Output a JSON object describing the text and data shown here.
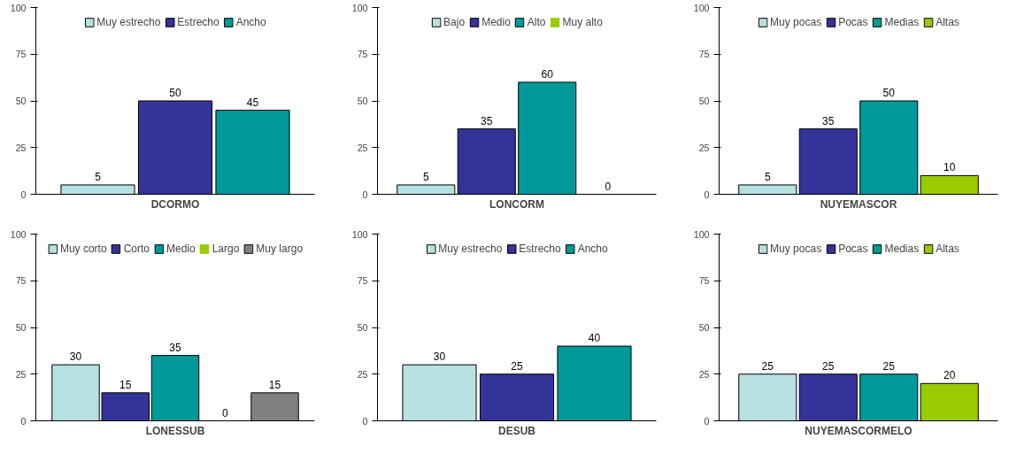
{
  "chart_data": [
    {
      "type": "bar",
      "categories": [
        null,
        null,
        null
      ],
      "xlabel": "DCORMO",
      "ylim": [
        0,
        100
      ],
      "yticks": [
        0,
        25,
        50,
        75,
        100
      ],
      "data_labels": true,
      "legend": "top",
      "grid": false,
      "series": [
        {
          "name": "Muy estrecho",
          "color": "#b7e0e3",
          "values": [
            5,
            null,
            null
          ]
        },
        {
          "name": "Estrecho",
          "color": "#333399",
          "values": [
            null,
            50,
            null
          ]
        },
        {
          "name": "Ancho",
          "color": "#009999",
          "values": [
            null,
            null,
            45
          ]
        }
      ]
    },
    {
      "type": "bar",
      "categories": [
        null,
        null,
        null,
        null
      ],
      "xlabel": "LONCORM",
      "ylim": [
        0,
        100
      ],
      "yticks": [
        0,
        25,
        50,
        75,
        100
      ],
      "data_labels": true,
      "legend": "top",
      "grid": false,
      "series": [
        {
          "name": "Bajo",
          "color": "#b7e0e3",
          "values": [
            5,
            null,
            null,
            null
          ]
        },
        {
          "name": "Medio",
          "color": "#333399",
          "values": [
            null,
            35,
            null,
            null
          ]
        },
        {
          "name": "Alto",
          "color": "#009999",
          "values": [
            null,
            null,
            60,
            null
          ]
        },
        {
          "name": "Muy alto",
          "color": "#99cc00",
          "values": [
            null,
            null,
            null,
            0
          ]
        }
      ]
    },
    {
      "type": "bar",
      "categories": [
        null,
        null,
        null,
        null
      ],
      "xlabel": "NUYEMASCOR",
      "ylim": [
        0,
        100
      ],
      "yticks": [
        0,
        25,
        50,
        75,
        100
      ],
      "data_labels": true,
      "legend": "top",
      "grid": false,
      "series": [
        {
          "name": "Muy pocas",
          "color": "#b7e0e3",
          "values": [
            5,
            null,
            null,
            null
          ]
        },
        {
          "name": "Pocas",
          "color": "#333399",
          "values": [
            null,
            35,
            null,
            null
          ]
        },
        {
          "name": "Medias",
          "color": "#009999",
          "values": [
            null,
            null,
            50,
            null
          ]
        },
        {
          "name": "Altas",
          "color": "#99cc00",
          "values": [
            null,
            null,
            null,
            10
          ]
        }
      ]
    },
    {
      "type": "bar",
      "categories": [
        null,
        null,
        null,
        null,
        null
      ],
      "xlabel": "LONESSUB",
      "ylim": [
        0,
        100
      ],
      "yticks": [
        0,
        25,
        50,
        75,
        100
      ],
      "data_labels": true,
      "legend": "top",
      "grid": false,
      "series": [
        {
          "name": "Muy corto",
          "color": "#b7e0e3",
          "values": [
            30,
            null,
            null,
            null,
            null
          ]
        },
        {
          "name": "Corto",
          "color": "#333399",
          "values": [
            null,
            15,
            null,
            null,
            null
          ]
        },
        {
          "name": "Medio",
          "color": "#009999",
          "values": [
            null,
            null,
            35,
            null,
            null
          ]
        },
        {
          "name": "Largo",
          "color": "#99cc00",
          "values": [
            null,
            null,
            null,
            0,
            null
          ]
        },
        {
          "name": "Muy largo",
          "color": "#808080",
          "values": [
            null,
            null,
            null,
            null,
            15
          ]
        }
      ]
    },
    {
      "type": "bar",
      "categories": [
        null,
        null,
        null
      ],
      "xlabel": "DESUB",
      "ylim": [
        0,
        100
      ],
      "yticks": [
        0,
        25,
        50,
        75,
        100
      ],
      "data_labels": true,
      "legend": "top",
      "grid": false,
      "series": [
        {
          "name": "Muy estrecho",
          "color": "#b7e0e3",
          "values": [
            30,
            null,
            null
          ]
        },
        {
          "name": "Estrecho",
          "color": "#333399",
          "values": [
            null,
            25,
            null
          ]
        },
        {
          "name": "Ancho",
          "color": "#009999",
          "values": [
            null,
            null,
            40
          ]
        }
      ]
    },
    {
      "type": "bar",
      "categories": [
        null,
        null,
        null,
        null
      ],
      "xlabel": "NUYEMASCORMELO",
      "ylim": [
        0,
        100
      ],
      "yticks": [
        0,
        25,
        50,
        75,
        100
      ],
      "data_labels": true,
      "legend": "top",
      "grid": false,
      "series": [
        {
          "name": "Muy pocas",
          "color": "#b7e0e3",
          "values": [
            25,
            null,
            null,
            null
          ]
        },
        {
          "name": "Pocas",
          "color": "#333399",
          "values": [
            null,
            25,
            null,
            null
          ]
        },
        {
          "name": "Medias",
          "color": "#009999",
          "values": [
            null,
            null,
            25,
            null
          ]
        },
        {
          "name": "Altas",
          "color": "#99cc00",
          "values": [
            null,
            null,
            null,
            20
          ]
        }
      ]
    }
  ]
}
